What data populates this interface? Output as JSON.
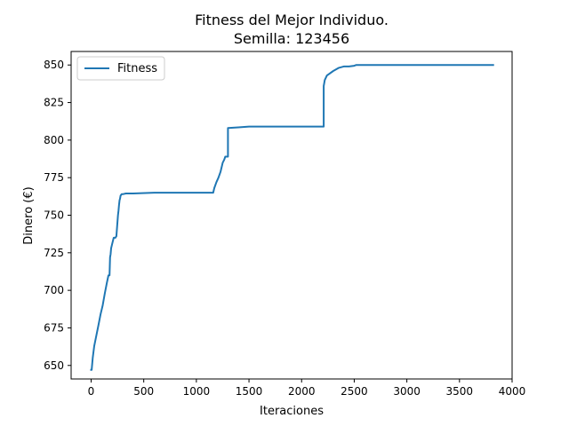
{
  "chart_data": {
    "type": "line",
    "title_line1": "Fitness del Mejor Individuo.",
    "title_line2": "Semilla: 123456",
    "xlabel": "Iteraciones",
    "ylabel": "Dinero (€)",
    "xlim": [
      -190,
      4000
    ],
    "ylim": [
      641,
      859
    ],
    "xticks": [
      0,
      500,
      1000,
      1500,
      2000,
      2500,
      3000,
      3500,
      4000
    ],
    "yticks": [
      650,
      675,
      700,
      725,
      750,
      775,
      800,
      825,
      850
    ],
    "grid": false,
    "legend_position": "upper left",
    "colors": {
      "series": "#1f77b4"
    },
    "series": [
      {
        "name": "Fitness",
        "x": [
          0,
          5,
          15,
          30,
          50,
          70,
          90,
          110,
          130,
          150,
          165,
          175,
          180,
          185,
          190,
          200,
          215,
          230,
          240,
          255,
          260,
          265,
          270,
          275,
          280,
          290,
          300,
          330,
          400,
          600,
          1000,
          1160,
          1170,
          1190,
          1210,
          1230,
          1250,
          1265,
          1275,
          1285,
          1290,
          1295,
          1300,
          1300,
          1400,
          1500,
          2200,
          2210,
          2210,
          2220,
          2240,
          2260,
          2300,
          2350,
          2400,
          2450,
          2500,
          2520,
          2600,
          3000,
          3500,
          3820
        ],
        "y": [
          647,
          647,
          655,
          663,
          670,
          677,
          684,
          690,
          698,
          705,
          710,
          710,
          722,
          724,
          728,
          731,
          735,
          735,
          736,
          750,
          753,
          757,
          760,
          761,
          763,
          764,
          764,
          764.5,
          764.5,
          765,
          765,
          765,
          768,
          772,
          775,
          779,
          785,
          787,
          789,
          789,
          789,
          789,
          789,
          808,
          808.5,
          809,
          809,
          809,
          836,
          840,
          843,
          844,
          846,
          848,
          849,
          849,
          849.5,
          850,
          850,
          850,
          850,
          850
        ]
      }
    ]
  }
}
